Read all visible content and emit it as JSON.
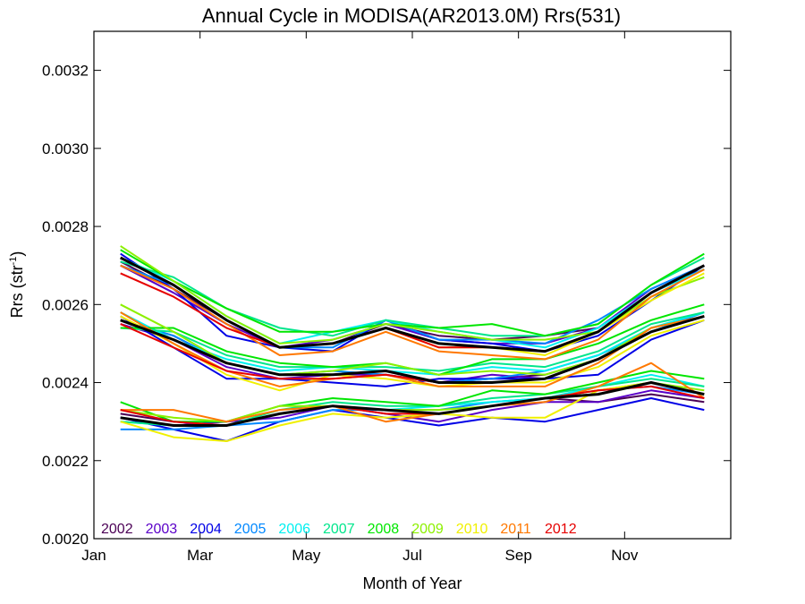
{
  "chart_data": {
    "type": "line",
    "title": "Annual Cycle in MODISA(AR2013.0M) Rrs(531)",
    "xlabel": "Month of Year",
    "ylabel_main": "Rrs (str",
    "ylabel_sup": "-1",
    "ylabel_end": ")",
    "xlim": [
      1,
      13
    ],
    "ylim": [
      0.002,
      0.0033
    ],
    "x_ticks": [
      1,
      3,
      5,
      7,
      9,
      11
    ],
    "x_tick_labels": [
      "Jan",
      "Mar",
      "May",
      "Jul",
      "Sep",
      "Nov"
    ],
    "y_ticks": [
      0.002,
      0.0022,
      0.0024,
      0.0026,
      0.0028,
      0.003,
      0.0032
    ],
    "y_tick_labels": [
      "0.0020",
      "0.0022",
      "0.0024",
      "0.0026",
      "0.0028",
      "0.0030",
      "0.0032"
    ],
    "legend_placement": "bottom-left, inside plot",
    "months": [
      1.5,
      2.5,
      3.5,
      4.5,
      5.5,
      6.5,
      7.5,
      8.5,
      9.5,
      10.5,
      11.5,
      12.5
    ],
    "years": [
      {
        "name": "2002",
        "color": "#4b0055",
        "high": [
          0.00271,
          0.00264,
          0.00256,
          0.00249,
          0.0025,
          0.00255,
          0.00252,
          0.00251,
          0.00252,
          0.00254,
          0.00263,
          0.00269
        ],
        "mid": [
          0.00256,
          0.00252,
          0.00245,
          0.00242,
          0.00242,
          0.00243,
          0.0024,
          0.00241,
          0.00242,
          0.00246,
          0.00253,
          0.00257
        ],
        "low": [
          0.00232,
          0.0023,
          0.00229,
          0.00232,
          0.00234,
          0.00233,
          0.00232,
          0.00234,
          0.00236,
          0.00235,
          0.00237,
          0.00235
        ]
      },
      {
        "name": "2003",
        "color": "#5a00c8",
        "high": [
          0.0027,
          0.00263,
          0.00255,
          0.00249,
          0.00251,
          0.00255,
          0.00251,
          0.0025,
          0.0025,
          0.00254,
          0.00264,
          0.0027
        ],
        "mid": [
          0.00255,
          0.00251,
          0.00244,
          0.00241,
          0.00242,
          0.00242,
          0.0024,
          0.00242,
          0.00241,
          0.00246,
          0.00253,
          0.00257
        ],
        "low": [
          0.00231,
          0.00229,
          0.0023,
          0.00231,
          0.00234,
          0.00232,
          0.0023,
          0.00233,
          0.00235,
          0.00235,
          0.00238,
          0.00236
        ]
      },
      {
        "name": "2004",
        "color": "#0000e6",
        "high": [
          0.00273,
          0.00264,
          0.00252,
          0.00249,
          0.00248,
          0.00256,
          0.00251,
          0.0025,
          0.00248,
          0.00252,
          0.00261,
          0.0027
        ],
        "mid": [
          0.00257,
          0.00249,
          0.00241,
          0.00241,
          0.0024,
          0.00239,
          0.00241,
          0.00241,
          0.00241,
          0.00242,
          0.00251,
          0.00256
        ],
        "low": [
          0.00231,
          0.00228,
          0.00225,
          0.0023,
          0.00233,
          0.00231,
          0.00229,
          0.00231,
          0.0023,
          0.00233,
          0.00236,
          0.00233
        ]
      },
      {
        "name": "2005",
        "color": "#0088ff",
        "high": [
          0.0027,
          0.00265,
          0.00256,
          0.00249,
          0.00249,
          0.00256,
          0.00251,
          0.00251,
          0.0025,
          0.00256,
          0.00264,
          0.0027
        ],
        "mid": [
          0.00256,
          0.00252,
          0.00245,
          0.00242,
          0.00243,
          0.00242,
          0.0024,
          0.00241,
          0.00243,
          0.00247,
          0.00253,
          0.00258
        ],
        "low": [
          0.00228,
          0.00228,
          0.00229,
          0.0023,
          0.00233,
          0.00233,
          0.00233,
          0.00235,
          0.00236,
          0.00238,
          0.00239,
          0.00237
        ]
      },
      {
        "name": "2006",
        "color": "#00f0f0",
        "high": [
          0.00272,
          0.00266,
          0.00257,
          0.0025,
          0.00253,
          0.00256,
          0.00253,
          0.00251,
          0.00249,
          0.00254,
          0.00263,
          0.00269
        ],
        "mid": [
          0.00258,
          0.00251,
          0.00246,
          0.00243,
          0.00244,
          0.00243,
          0.00242,
          0.00244,
          0.00243,
          0.00247,
          0.00254,
          0.00258
        ],
        "low": [
          0.0023,
          0.00229,
          0.00229,
          0.00232,
          0.00234,
          0.00233,
          0.00234,
          0.00235,
          0.00236,
          0.00239,
          0.00242,
          0.00239
        ]
      },
      {
        "name": "2007",
        "color": "#00e68c",
        "high": [
          0.00271,
          0.00267,
          0.00259,
          0.00254,
          0.00252,
          0.00256,
          0.00254,
          0.00252,
          0.00252,
          0.00255,
          0.00265,
          0.00272
        ],
        "mid": [
          0.00254,
          0.00253,
          0.00247,
          0.00244,
          0.00244,
          0.00244,
          0.00243,
          0.00245,
          0.00244,
          0.00248,
          0.00255,
          0.00258
        ],
        "low": [
          0.0023,
          0.00229,
          0.00229,
          0.00233,
          0.00235,
          0.00234,
          0.00234,
          0.00236,
          0.00237,
          0.00239,
          0.00241,
          0.00239
        ]
      },
      {
        "name": "2008",
        "color": "#00e600",
        "high": [
          0.00274,
          0.00266,
          0.00259,
          0.00253,
          0.00253,
          0.00255,
          0.00254,
          0.00255,
          0.00252,
          0.00255,
          0.00265,
          0.00273
        ],
        "mid": [
          0.00254,
          0.00254,
          0.00248,
          0.00245,
          0.00244,
          0.00245,
          0.00242,
          0.00246,
          0.00246,
          0.0025,
          0.00256,
          0.0026
        ],
        "low": [
          0.00235,
          0.0023,
          0.0023,
          0.00234,
          0.00236,
          0.00235,
          0.00234,
          0.00238,
          0.00237,
          0.0024,
          0.00243,
          0.00241
        ]
      },
      {
        "name": "2009",
        "color": "#8cf000",
        "high": [
          0.00275,
          0.00266,
          0.00257,
          0.0025,
          0.00251,
          0.00255,
          0.00253,
          0.00251,
          0.00251,
          0.00253,
          0.00262,
          0.00267
        ],
        "mid": [
          0.0026,
          0.00253,
          0.00245,
          0.00242,
          0.00243,
          0.00245,
          0.00242,
          0.00243,
          0.00242,
          0.00246,
          0.00254,
          0.00257
        ],
        "low": [
          0.00233,
          0.00231,
          0.0023,
          0.00234,
          0.00234,
          0.00233,
          0.00233,
          0.00234,
          0.00236,
          0.00238,
          0.0024,
          0.00238
        ]
      },
      {
        "name": "2010",
        "color": "#f0f000",
        "high": [
          0.00272,
          0.00265,
          0.00256,
          0.00249,
          0.0025,
          0.00254,
          0.00249,
          0.00249,
          0.00247,
          0.00253,
          0.00261,
          0.00268
        ],
        "mid": [
          0.00257,
          0.0025,
          0.00242,
          0.00238,
          0.00242,
          0.00241,
          0.00239,
          0.0024,
          0.0024,
          0.00244,
          0.00252,
          0.00256
        ],
        "low": [
          0.0023,
          0.00226,
          0.00225,
          0.00229,
          0.00232,
          0.00231,
          0.00232,
          0.00231,
          0.00231,
          0.00238,
          0.0024,
          0.00237
        ]
      },
      {
        "name": "2011",
        "color": "#ff7800",
        "high": [
          0.0027,
          0.00264,
          0.00255,
          0.00247,
          0.00248,
          0.00253,
          0.00248,
          0.00247,
          0.00246,
          0.00251,
          0.00262,
          0.00269
        ],
        "mid": [
          0.00258,
          0.0025,
          0.00243,
          0.00239,
          0.00241,
          0.00242,
          0.00239,
          0.00239,
          0.00239,
          0.00245,
          0.00254,
          0.00257
        ],
        "low": [
          0.00233,
          0.00233,
          0.0023,
          0.00233,
          0.00234,
          0.0023,
          0.00232,
          0.00234,
          0.00235,
          0.00239,
          0.00245,
          0.00236
        ]
      },
      {
        "name": "2012",
        "color": "#e60000",
        "high": [
          0.00268,
          0.00262,
          0.00254,
          0.00249,
          0.0025,
          0.00254,
          0.00249,
          0.00249,
          0.00248,
          0.00253,
          0.00263,
          0.0027
        ],
        "mid": [
          0.00255,
          0.00249,
          0.00243,
          0.00241,
          0.00241,
          0.00242,
          0.0024,
          0.0024,
          0.00241,
          0.00246,
          0.00253,
          0.00257
        ],
        "low": [
          0.00233,
          0.0023,
          0.00229,
          0.00232,
          0.00234,
          0.00232,
          0.00232,
          0.00234,
          0.00236,
          0.00238,
          0.00239,
          0.00236
        ]
      }
    ],
    "mean": {
      "color": "#000000",
      "high": [
        0.00272,
        0.00265,
        0.00256,
        0.00249,
        0.0025,
        0.00254,
        0.0025,
        0.00249,
        0.00248,
        0.00253,
        0.00263,
        0.0027
      ],
      "mid": [
        0.00256,
        0.00251,
        0.00245,
        0.00242,
        0.00242,
        0.00243,
        0.0024,
        0.0024,
        0.00241,
        0.00246,
        0.00253,
        0.00257
      ],
      "low": [
        0.00231,
        0.00229,
        0.00229,
        0.00232,
        0.00234,
        0.00233,
        0.00232,
        0.00234,
        0.00236,
        0.00237,
        0.0024,
        0.00237
      ]
    }
  }
}
